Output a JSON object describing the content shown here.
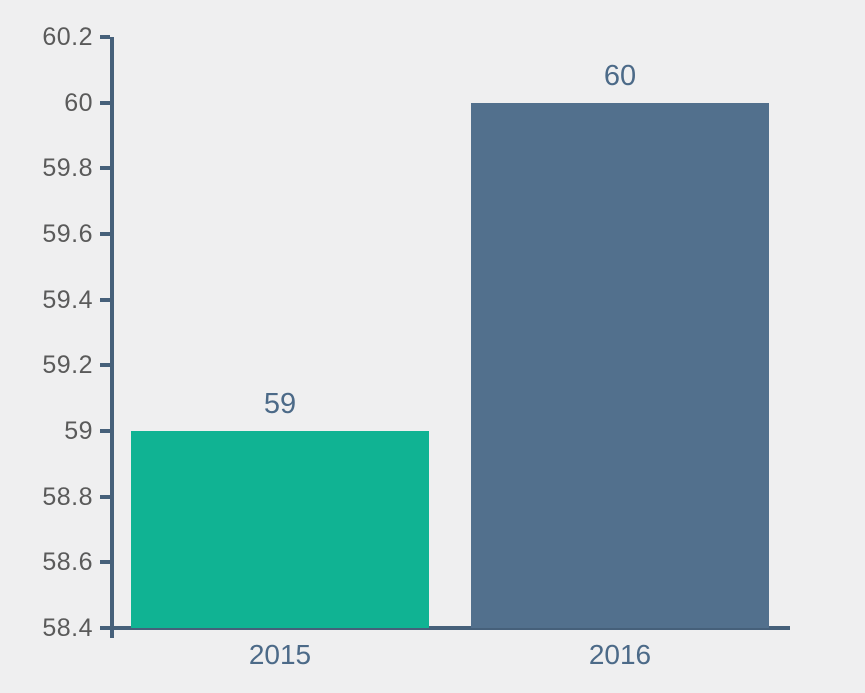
{
  "chart_data": {
    "type": "bar",
    "title": "",
    "xlabel": "",
    "ylabel": "",
    "categories": [
      "2015",
      "2016"
    ],
    "values": [
      59,
      60
    ],
    "data_labels": [
      "59",
      "60"
    ],
    "series_colors": [
      "#10b393",
      "#52708d"
    ],
    "ylim": [
      58.4,
      60.2
    ],
    "ytick_step": 0.2,
    "ytick_labels": [
      "60.2",
      "60",
      "59.8",
      "59.6",
      "59.4",
      "59.2",
      "59",
      "58.8",
      "58.6",
      "58.4"
    ],
    "grid": false,
    "legend": false
  },
  "colors": {
    "background": "#efeff0",
    "axis_line": "#46607a",
    "ytick_label": "#5a5a5a",
    "value_label": "#4c6a88",
    "category_label": "#4c6a88"
  }
}
